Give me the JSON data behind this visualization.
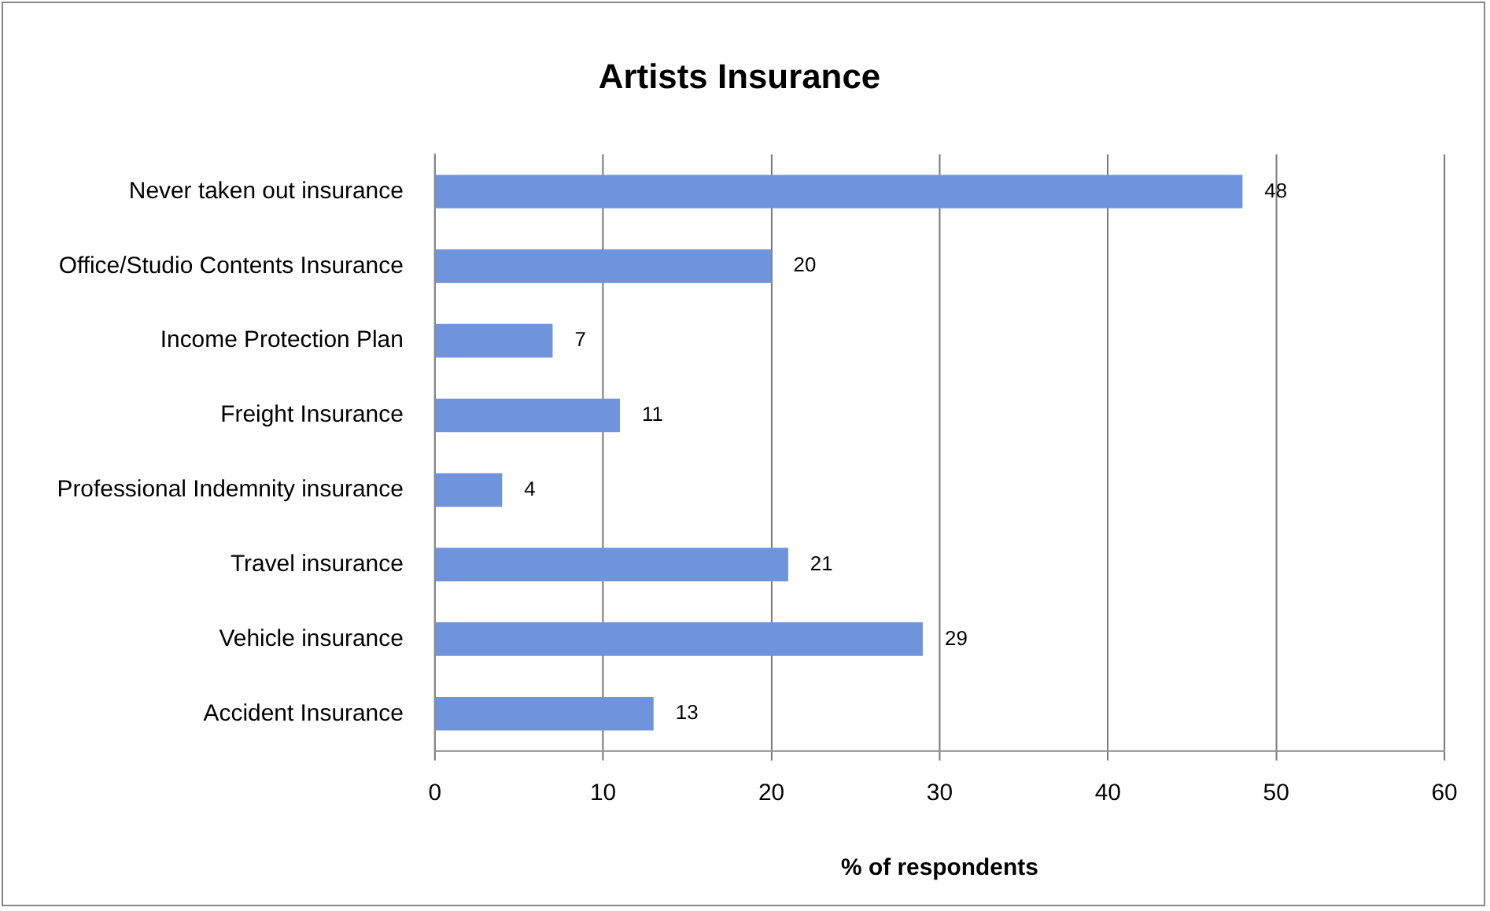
{
  "chart_data": {
    "type": "bar",
    "orientation": "horizontal",
    "title": "Artists Insurance",
    "xlabel": "% of respondents",
    "categories": [
      "Never taken out insurance",
      "Office/Studio Contents Insurance",
      "Income Protection Plan",
      "Freight Insurance",
      "Professional Indemnity insurance",
      "Travel insurance",
      "Vehicle insurance",
      "Accident Insurance"
    ],
    "values": [
      48,
      20,
      7,
      11,
      4,
      21,
      29,
      13
    ],
    "color": "#6f94dc",
    "xlim": [
      0,
      60
    ],
    "xticks": [
      0,
      10,
      20,
      30,
      40,
      50,
      60
    ],
    "grid": "x",
    "legend": false,
    "data_labels": true
  }
}
